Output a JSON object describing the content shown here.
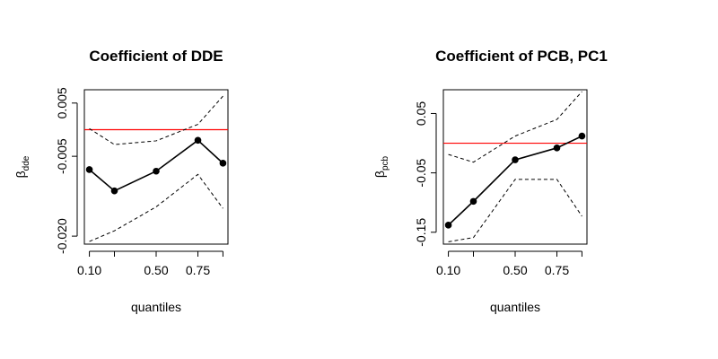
{
  "chart_data": [
    {
      "type": "line",
      "title": "Coefficient of DDE",
      "xlabel": "quantiles",
      "ylabel": "β",
      "ylabel_sub": "dde",
      "x": [
        0.1,
        0.25,
        0.5,
        0.75,
        0.9
      ],
      "x_ticks": [
        0.1,
        0.5,
        0.75
      ],
      "x_tick_labels": [
        "0.10",
        "0.50",
        "0.75"
      ],
      "xlim": [
        0.07,
        0.93
      ],
      "ylim": [
        -0.0215,
        0.0075
      ],
      "y_ticks": [
        -0.02,
        -0.005,
        0.005
      ],
      "y_tick_labels": [
        "-0.020",
        "-0.005",
        "0.005"
      ],
      "reference_line": 0,
      "reference_color": "#ff0000",
      "series": [
        {
          "role": "estimate",
          "values": [
            -0.0075,
            -0.0115,
            -0.0078,
            -0.002,
            -0.0063
          ]
        },
        {
          "role": "upper",
          "values": [
            0.0002,
            -0.0028,
            -0.0021,
            0.001,
            0.0063
          ]
        },
        {
          "role": "lower",
          "values": [
            -0.021,
            -0.019,
            -0.0145,
            -0.0084,
            -0.0148
          ]
        }
      ]
    },
    {
      "type": "line",
      "title": "Coefficient of PCB, PC1",
      "xlabel": "quantiles",
      "ylabel": "β",
      "ylabel_sub": "pcb",
      "x": [
        0.1,
        0.25,
        0.5,
        0.75,
        0.9
      ],
      "x_ticks": [
        0.1,
        0.5,
        0.75
      ],
      "x_tick_labels": [
        "0.10",
        "0.50",
        "0.75"
      ],
      "xlim": [
        0.07,
        0.93
      ],
      "ylim": [
        -0.17,
        0.09
      ],
      "y_ticks": [
        -0.15,
        -0.05,
        0.05
      ],
      "y_tick_labels": [
        "-0.15",
        "-0.05",
        "0.05"
      ],
      "reference_line": 0,
      "reference_color": "#ff0000",
      "series": [
        {
          "role": "estimate",
          "values": [
            -0.138,
            -0.098,
            -0.028,
            -0.008,
            0.012
          ]
        },
        {
          "role": "upper",
          "values": [
            -0.019,
            -0.032,
            0.012,
            0.04,
            0.087
          ]
        },
        {
          "role": "lower",
          "values": [
            -0.166,
            -0.159,
            -0.061,
            -0.061,
            -0.123
          ]
        }
      ]
    }
  ]
}
